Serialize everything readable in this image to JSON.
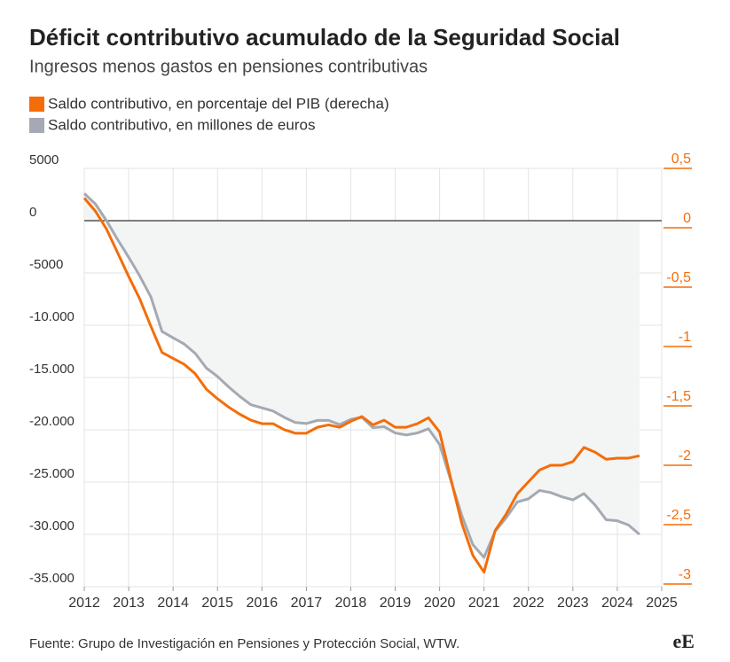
{
  "chart_data": {
    "type": "line",
    "title": "Déficit contributivo acumulado de la Seguridad Social",
    "subtitle": "Ingresos menos gastos en pensiones contributivas",
    "source": "Fuente: Grupo de Investigación en Pensiones y Protección Social, WTW.",
    "logo": "eE",
    "x": [
      2012,
      2012.25,
      2012.5,
      2012.75,
      2013,
      2013.25,
      2013.5,
      2013.75,
      2014,
      2014.25,
      2014.5,
      2014.75,
      2015,
      2015.25,
      2015.5,
      2015.75,
      2016,
      2016.25,
      2016.5,
      2016.75,
      2017,
      2017.25,
      2017.5,
      2017.75,
      2018,
      2018.25,
      2018.5,
      2018.75,
      2019,
      2019.25,
      2019.5,
      2019.75,
      2020,
      2020.25,
      2020.5,
      2020.75,
      2021,
      2021.25,
      2021.5,
      2021.75,
      2022,
      2022.25,
      2022.5,
      2022.75,
      2023,
      2023.25,
      2023.5,
      2023.75,
      2024,
      2024.25,
      2024.5
    ],
    "series": [
      {
        "name": "Saldo contributivo, en porcentaje del PIB (derecha)",
        "color": "#f46d09",
        "axis": "y2",
        "values": [
          0.25,
          0.14,
          -0.01,
          -0.21,
          -0.41,
          -0.6,
          -0.83,
          -1.05,
          -1.1,
          -1.15,
          -1.23,
          -1.36,
          -1.44,
          -1.51,
          -1.57,
          -1.62,
          -1.65,
          -1.65,
          -1.7,
          -1.73,
          -1.73,
          -1.68,
          -1.66,
          -1.68,
          -1.63,
          -1.59,
          -1.66,
          -1.62,
          -1.68,
          -1.68,
          -1.65,
          -1.6,
          -1.72,
          -2.11,
          -2.49,
          -2.76,
          -2.9,
          -2.55,
          -2.41,
          -2.24,
          -2.14,
          -2.04,
          -2.0,
          -2.0,
          -1.97,
          -1.85,
          -1.89,
          -1.95,
          -1.94,
          -1.94,
          -1.92
        ]
      },
      {
        "name": "Saldo contributivo, en millones de euros",
        "color": "#a4a9b3",
        "values": [
          2600,
          1600,
          0,
          -1800,
          -3500,
          -5300,
          -7300,
          -10600,
          -11200,
          -11800,
          -12700,
          -14100,
          -14900,
          -15900,
          -16800,
          -17600,
          -17900,
          -18200,
          -18800,
          -19300,
          -19400,
          -19100,
          -19100,
          -19500,
          -19000,
          -18800,
          -19800,
          -19700,
          -20300,
          -20500,
          -20300,
          -19900,
          -21400,
          -24800,
          -28200,
          -31000,
          -32200,
          -29700,
          -28400,
          -26900,
          -26600,
          -25800,
          -26000,
          -26400,
          -26700,
          -26100,
          -27200,
          -28600,
          -28700,
          -29100,
          -30000
        ]
      }
    ],
    "xlim": [
      2012,
      2025
    ],
    "xticks": [
      2012,
      2013,
      2014,
      2015,
      2016,
      2017,
      2018,
      2019,
      2020,
      2021,
      2022,
      2023,
      2024,
      2025
    ],
    "ylim": [
      -35000,
      5000
    ],
    "yticks": [
      5000,
      0,
      -5000,
      {
        "value": -10000,
        "label": "-10.000"
      },
      {
        "value": -15000,
        "label": "-15.000"
      },
      {
        "value": -20000,
        "label": "-20.000"
      },
      {
        "value": -25000,
        "label": "-25.000"
      },
      {
        "value": -30000,
        "label": "-30.000"
      },
      {
        "value": -35000,
        "label": "-35.000"
      }
    ],
    "y2lim": [
      -3,
      0.5
    ],
    "y2ticks": [
      {
        "value": 0.5,
        "label": "0,5"
      },
      0,
      {
        "value": -0.5,
        "label": "-0,5"
      },
      -1,
      {
        "value": -1.5,
        "label": "-1,5"
      },
      -2,
      {
        "value": -2.5,
        "label": "-2,5"
      },
      -3
    ],
    "grid": true
  }
}
